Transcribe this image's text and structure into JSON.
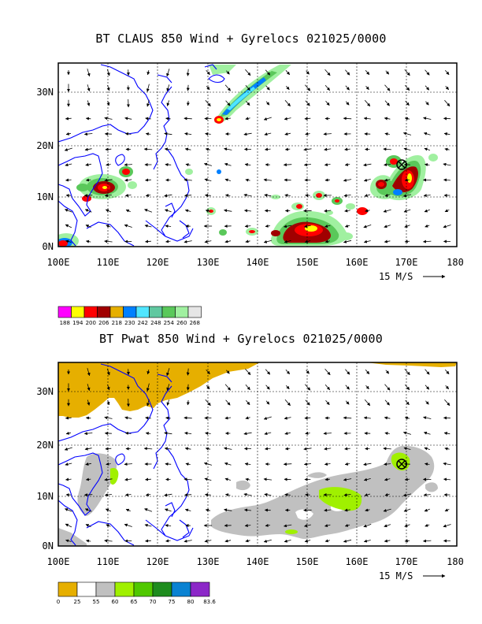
{
  "panel1": {
    "title": "BT CLAUS 850 Wind + Gyrelocs 021025/0000",
    "lat_labels": [
      "30N",
      "20N",
      "10N",
      "0N"
    ],
    "lon_labels": [
      "100E",
      "110E",
      "120E",
      "130E",
      "140E",
      "150E",
      "160E",
      "170E",
      "180"
    ],
    "vector_ref": "15 M/S",
    "colorbar": {
      "labels": [
        "188",
        "194",
        "200",
        "206",
        "218",
        "230",
        "242",
        "248",
        "254",
        "260",
        "268"
      ],
      "colors": [
        "#ff00ff",
        "#ffff00",
        "#ff0000",
        "#a00000",
        "#e6af00",
        "#0080ff",
        "#50e6ff",
        "#60c8a0",
        "#5ac85a",
        "#a0f0a0",
        "#e6e6e6"
      ]
    }
  },
  "panel2": {
    "title": "BT Pwat 850 Wind + Gyrelocs 021025/0000",
    "lat_labels": [
      "30N",
      "20N",
      "10N",
      "0N"
    ],
    "lon_labels": [
      "100E",
      "110E",
      "120E",
      "130E",
      "140E",
      "150E",
      "160E",
      "170E",
      "180"
    ],
    "vector_ref": "15 M/S",
    "colorbar": {
      "labels": [
        "0",
        "25",
        "55",
        "60",
        "65",
        "70",
        "75",
        "80",
        "83.6"
      ],
      "colors": [
        "#e6af00",
        "#ffffff",
        "#c0c0c0",
        "#a0f000",
        "#50c800",
        "#1e8c1e",
        "#0a82d2",
        "#8c28c8"
      ]
    }
  },
  "colors": {
    "coast": "#0000ff",
    "frame": "#000000",
    "grid": "#000000"
  },
  "icons": [
    "gyre-marker-icon"
  ]
}
